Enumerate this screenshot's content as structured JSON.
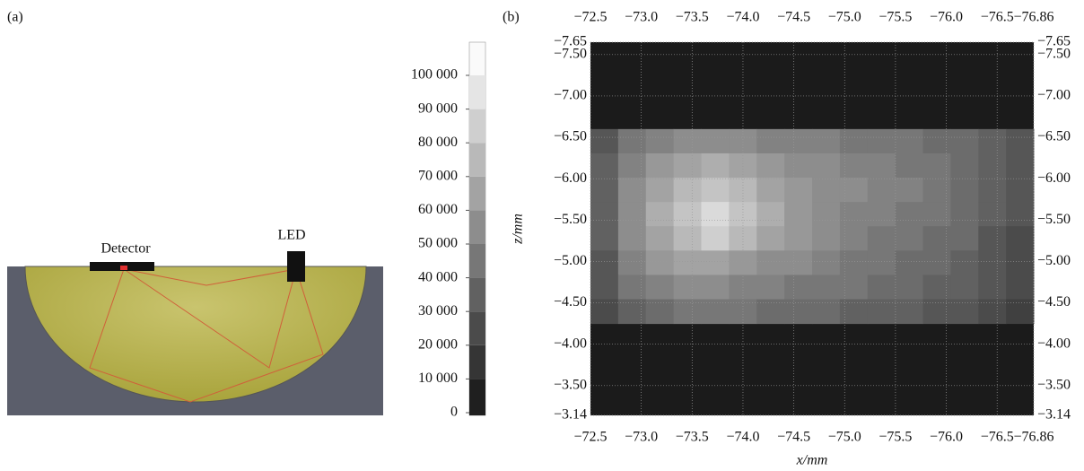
{
  "diagram": {
    "panel_label": "(a)",
    "detector_label": "Detector",
    "led_label": "LED"
  },
  "chart_data": {
    "type": "heatmap",
    "panel_label": "(b)",
    "x_label": "x/mm",
    "y_label": "z/mm",
    "xlim": [
      -72.5,
      -76.86
    ],
    "ylim": [
      -7.65,
      -3.14
    ],
    "clim": [
      0,
      100000
    ],
    "grid": true,
    "xticks": [
      {
        "value": -72.5,
        "label": "−72.5"
      },
      {
        "value": -73.0,
        "label": "−73.0"
      },
      {
        "value": -73.5,
        "label": "−73.5"
      },
      {
        "value": -74.0,
        "label": "−74.0"
      },
      {
        "value": -74.5,
        "label": "−74.5"
      },
      {
        "value": -75.0,
        "label": "−75.0"
      },
      {
        "value": -75.5,
        "label": "−75.5"
      },
      {
        "value": -76.0,
        "label": "−76.0"
      },
      {
        "value": -76.5,
        "label": "−76.5"
      },
      {
        "value": -76.86,
        "label": "−76.86"
      }
    ],
    "yticks": [
      {
        "value": -7.65,
        "label": "−7.65"
      },
      {
        "value": -7.5,
        "label": "−7.50"
      },
      {
        "value": -7.0,
        "label": "−7.00"
      },
      {
        "value": -6.5,
        "label": "−6.50"
      },
      {
        "value": -6.0,
        "label": "−6.00"
      },
      {
        "value": -5.5,
        "label": "−5.50"
      },
      {
        "value": -5.0,
        "label": "−5.00"
      },
      {
        "value": -4.5,
        "label": "−4.50"
      },
      {
        "value": -4.0,
        "label": "−4.00"
      },
      {
        "value": -3.5,
        "label": "−3.50"
      },
      {
        "value": -3.14,
        "label": "−3.14"
      }
    ],
    "cticks": [
      0,
      {
        "value": 10000,
        "label": "10 000"
      },
      {
        "value": 20000,
        "label": "20 000"
      },
      {
        "value": 30000,
        "label": "30 000"
      },
      {
        "value": 40000,
        "label": "40 000"
      },
      {
        "value": 50000,
        "label": "50 000"
      },
      {
        "value": 60000,
        "label": "60 000"
      },
      {
        "value": 70000,
        "label": "70 000"
      },
      {
        "value": 80000,
        "label": "80 000"
      },
      {
        "value": 90000,
        "label": "90 000"
      },
      {
        "value": 100000,
        "label": "100 000"
      }
    ],
    "x_edges": [
      -72.5,
      -72.7725,
      -73.045,
      -73.3175,
      -73.59,
      -73.8625,
      -74.135,
      -74.4075,
      -74.68,
      -74.9525,
      -75.225,
      -75.4975,
      -75.77,
      -76.0425,
      -76.315,
      -76.5875,
      -76.86
    ],
    "y_edges": [
      -6.6,
      -6.30625,
      -6.0125,
      -5.71875,
      -5.425,
      -5.13125,
      -4.8375,
      -4.54375,
      -4.25
    ],
    "values": [
      [
        30000,
        45000,
        50000,
        55000,
        55000,
        55000,
        50000,
        50000,
        50000,
        45000,
        45000,
        45000,
        40000,
        40000,
        35000,
        30000
      ],
      [
        35000,
        50000,
        60000,
        65000,
        70000,
        65000,
        60000,
        55000,
        55000,
        50000,
        50000,
        45000,
        45000,
        40000,
        35000,
        30000
      ],
      [
        35000,
        55000,
        65000,
        75000,
        80000,
        75000,
        65000,
        60000,
        55000,
        55000,
        50000,
        50000,
        45000,
        40000,
        35000,
        30000
      ],
      [
        35000,
        55000,
        70000,
        80000,
        90000,
        80000,
        70000,
        60000,
        55000,
        50000,
        50000,
        45000,
        45000,
        40000,
        35000,
        30000
      ],
      [
        35000,
        55000,
        65000,
        75000,
        85000,
        75000,
        65000,
        60000,
        55000,
        50000,
        45000,
        45000,
        40000,
        40000,
        30000,
        25000
      ],
      [
        30000,
        50000,
        60000,
        65000,
        65000,
        60000,
        55000,
        55000,
        50000,
        45000,
        45000,
        40000,
        40000,
        35000,
        30000,
        25000
      ],
      [
        30000,
        45000,
        50000,
        55000,
        55000,
        50000,
        50000,
        45000,
        45000,
        45000,
        40000,
        40000,
        35000,
        35000,
        30000,
        25000
      ],
      [
        25000,
        35000,
        40000,
        45000,
        45000,
        45000,
        40000,
        40000,
        40000,
        35000,
        35000,
        35000,
        30000,
        30000,
        25000,
        20000
      ]
    ]
  }
}
